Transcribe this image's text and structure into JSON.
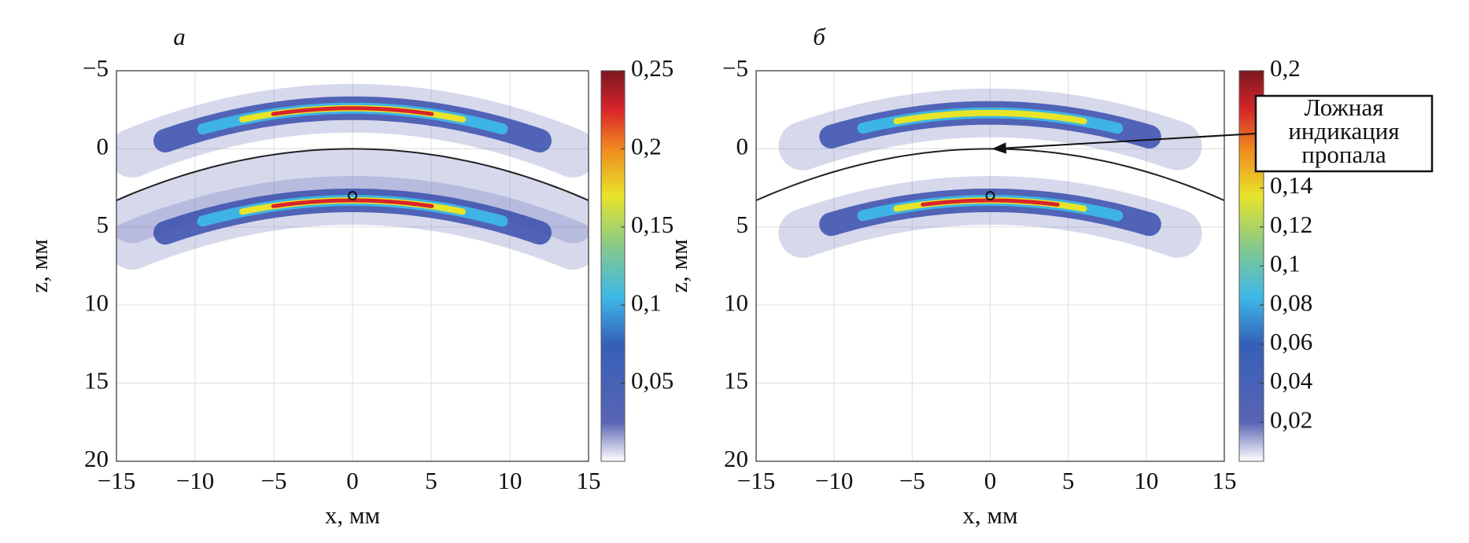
{
  "chart_data": [
    {
      "type": "heatmap",
      "panel_label": "а",
      "xlabel": "x, мм",
      "ylabel": "z, мм",
      "xlim": [
        -15,
        15
      ],
      "ylim": [
        -5,
        20
      ],
      "xticks": [
        {
          "value": -15,
          "label": "−15"
        },
        {
          "value": -10,
          "label": "−10"
        },
        {
          "value": -5,
          "label": "−5"
        },
        0,
        5,
        10,
        15
      ],
      "yticks": [
        {
          "value": -5,
          "label": "−5"
        },
        0,
        5,
        10,
        15,
        20
      ],
      "grid": true,
      "colorbar": {
        "clim": [
          0,
          0.25
        ],
        "ticks": [
          {
            "value": 0.05,
            "label": "0,05"
          },
          {
            "value": 0.1,
            "label": "0,1"
          },
          {
            "value": 0.15,
            "label": "0,15"
          },
          {
            "value": 0.2,
            "label": "0,2"
          },
          {
            "value": 0.25,
            "label": "0,25"
          }
        ]
      }
    },
    {
      "type": "heatmap",
      "panel_label": "б",
      "xlabel": "x, мм",
      "ylabel": "z, мм",
      "xlim": [
        -15,
        15
      ],
      "ylim": [
        -5,
        20
      ],
      "xticks": [
        {
          "value": -15,
          "label": "−15"
        },
        {
          "value": -10,
          "label": "−10"
        },
        {
          "value": -5,
          "label": "−5"
        },
        0,
        5,
        10,
        15
      ],
      "yticks": [
        {
          "value": -5,
          "label": "−5"
        },
        0,
        5,
        10,
        15,
        20
      ],
      "grid": true,
      "colorbar": {
        "clim": [
          0,
          0.2
        ],
        "ticks": [
          {
            "value": 0.02,
            "label": "0,02"
          },
          {
            "value": 0.04,
            "label": "0,04"
          },
          {
            "value": 0.06,
            "label": "0,06"
          },
          {
            "value": 0.08,
            "label": "0,08"
          },
          {
            "value": 0.1,
            "label": "0,1"
          },
          {
            "value": 0.12,
            "label": "0,12"
          },
          {
            "value": 0.14,
            "label": "0,14"
          },
          {
            "value": 0.2,
            "label": "0,2"
          }
        ]
      },
      "annotation": [
        "Ложная",
        "индикация",
        "пропала"
      ]
    }
  ]
}
